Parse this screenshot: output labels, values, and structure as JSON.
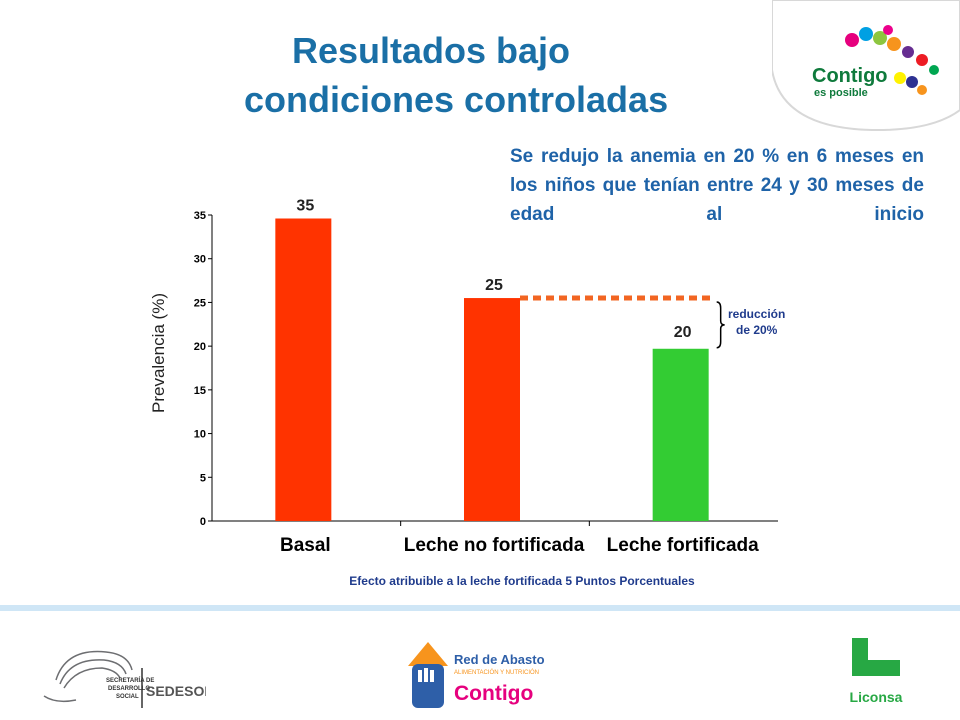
{
  "slide": {
    "title_line1": "Resultados bajo",
    "title_line2": "condiciones controladas",
    "note": "Se redujo la anemia en 20 % en 6 meses en los niños que tenían entre 24 y 30 meses de edad al inicio"
  },
  "chart_data": {
    "type": "bar",
    "categories": [
      "Basal",
      "Leche no fortificada",
      "Leche fortificada"
    ],
    "values": [
      35,
      25,
      20
    ],
    "value_labels": [
      "35",
      "25",
      "20"
    ],
    "plotted_values": [
      34.6,
      25.5,
      19.7
    ],
    "colors": [
      "#ff3300",
      "#ff3300",
      "#33cc33"
    ],
    "ylabel": "Prevalencia (%)",
    "xlabel": "",
    "ylim": [
      0,
      35
    ],
    "yticks": [
      0,
      5,
      10,
      15,
      20,
      25,
      30,
      35
    ],
    "grid": false,
    "caption": "Efecto atribuible a la leche fortificada 5 Puntos Porcentuales",
    "annotation": {
      "text_line1": "reducción",
      "text_line2": "de 20%",
      "reference_value": 25.5,
      "line_color": "#f26522",
      "text_color": "#1f3b8c"
    }
  },
  "logos": {
    "contigo_line1": "Contigo",
    "contigo_line2": "es posible",
    "sedesol_line1": "SECRETARÍA DE",
    "sedesol_line2": "DESARROLLO",
    "sedesol_line3": "SOCIAL",
    "sedesol_name": "SEDESOL",
    "red_line1": "Red de Abasto",
    "red_line2": "ALIMENTACIÓN Y NUTRICIÓN",
    "red_line3": "Contigo",
    "liconsa": "Liconsa"
  }
}
